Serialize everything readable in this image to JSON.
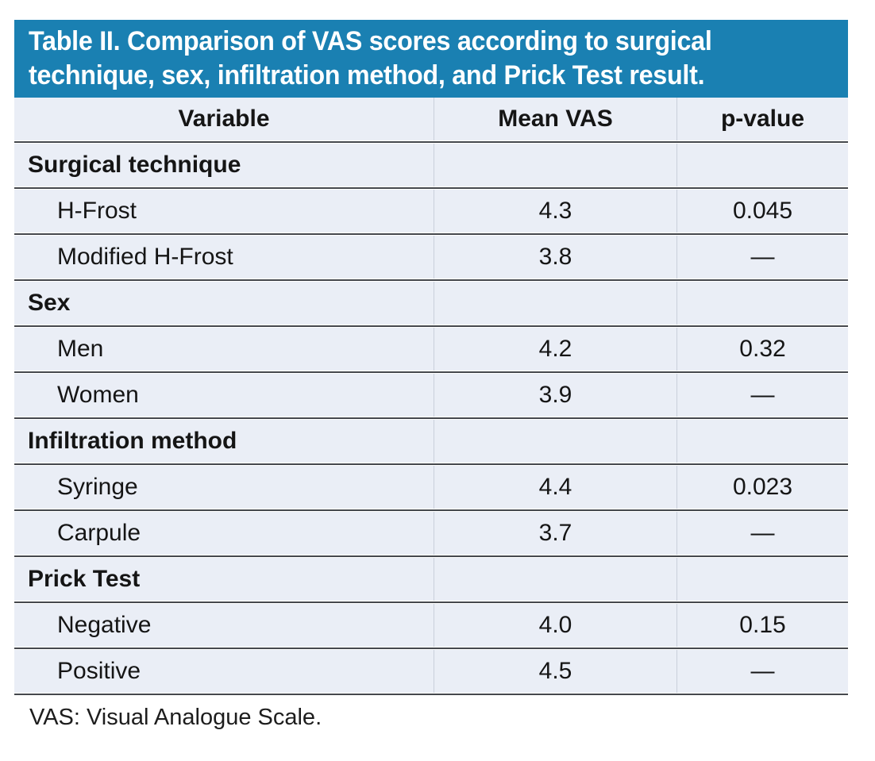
{
  "table": {
    "title_lines": [
      "Table II. Comparison of VAS scores according to surgical",
      "technique, sex, infiltration method, and Prick Test result."
    ],
    "columns": [
      "Variable",
      "Mean VAS",
      "p-value"
    ],
    "sections": [
      {
        "header": "Surgical technique",
        "rows": [
          {
            "label": "H-Frost",
            "mean_vas": "4.3",
            "p_value": "0.045"
          },
          {
            "label": "Modified H-Frost",
            "mean_vas": "3.8",
            "p_value": "—"
          }
        ]
      },
      {
        "header": "Sex",
        "rows": [
          {
            "label": "Men",
            "mean_vas": "4.2",
            "p_value": "0.32"
          },
          {
            "label": "Women",
            "mean_vas": "3.9",
            "p_value": "—"
          }
        ]
      },
      {
        "header": "Infiltration method",
        "rows": [
          {
            "label": "Syringe",
            "mean_vas": "4.4",
            "p_value": "0.023"
          },
          {
            "label": "Carpule",
            "mean_vas": "3.7",
            "p_value": "—"
          }
        ]
      },
      {
        "header": "Prick Test",
        "rows": [
          {
            "label": "Negative",
            "mean_vas": "4.0",
            "p_value": "0.15"
          },
          {
            "label": "Positive",
            "mean_vas": "4.5",
            "p_value": "—"
          }
        ]
      }
    ],
    "footnote": "VAS: Visual Analogue Scale.",
    "colors": {
      "banner_blue": "#1a80b2",
      "row_background": "#eaeef6",
      "separator_line": "#45484d"
    }
  }
}
